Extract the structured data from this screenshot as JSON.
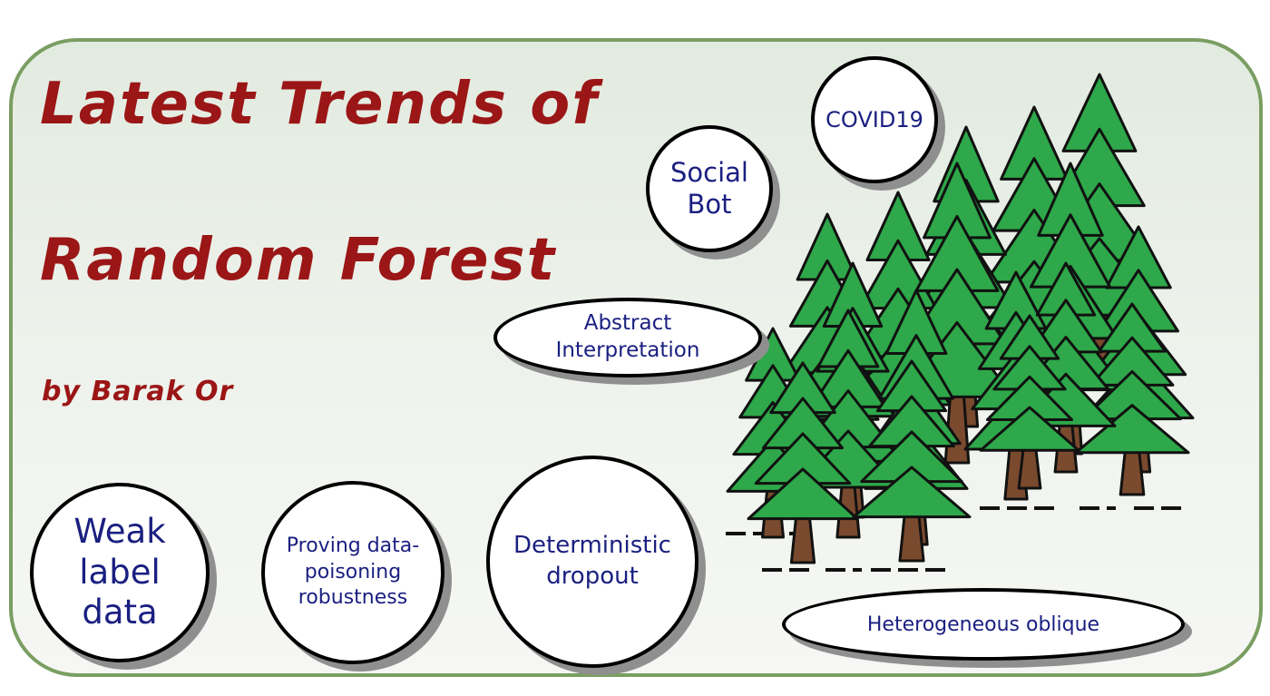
{
  "title": {
    "line1": "Latest Trends of",
    "line2": "Random Forest"
  },
  "author": "by Barak Or",
  "bubbles": {
    "covid": "COVID19",
    "social_bot": "Social Bot",
    "abstract": "Abstract Interpretation",
    "weak_label": "Weak label data",
    "proving": "Proving data-poisoning robustness",
    "dropout": "Deterministic dropout",
    "oblique": "Heterogeneous oblique"
  },
  "colors": {
    "title": "#9b1616",
    "bubble_text": "#1a1f80",
    "border": "#7a9e62",
    "tree_green": "#2ea84a",
    "trunk": "#7a4a2e"
  },
  "icons": {
    "forest": "pine-forest-illustration"
  }
}
